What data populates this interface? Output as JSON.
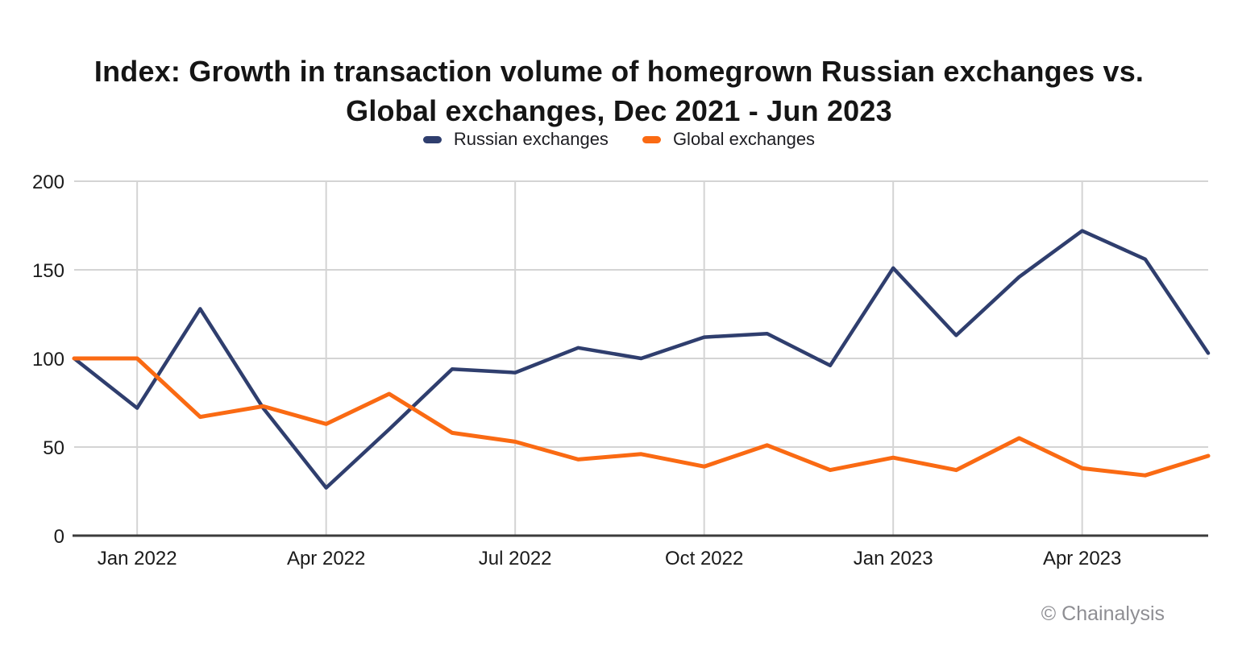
{
  "title": {
    "line1": "Index: Growth in transaction volume of homegrown Russian exchanges vs.",
    "line2": "Global exchanges, Dec 2021 - Jun 2023"
  },
  "legend": {
    "items": [
      {
        "label": "Russian exchanges",
        "color": "#2f3e6e"
      },
      {
        "label": "Global exchanges",
        "color": "#fa6a13"
      }
    ]
  },
  "footer": {
    "copyright": "© Chainalysis"
  },
  "chart_data": {
    "type": "line",
    "title": "Index: Growth in transaction volume of homegrown Russian exchanges vs. Global exchanges, Dec 2021 - Jun 2023",
    "x": [
      "Dec 2021",
      "Jan 2022",
      "Feb 2022",
      "Mar 2022",
      "Apr 2022",
      "May 2022",
      "Jun 2022",
      "Jul 2022",
      "Aug 2022",
      "Sep 2022",
      "Oct 2022",
      "Nov 2022",
      "Dec 2022",
      "Jan 2023",
      "Feb 2023",
      "Mar 2023",
      "Apr 2023",
      "May 2023",
      "Jun 2023"
    ],
    "series": [
      {
        "name": "Russian exchanges",
        "color": "#2f3e6e",
        "values": [
          100,
          72,
          128,
          72,
          27,
          60,
          94,
          92,
          106,
          100,
          112,
          114,
          96,
          151,
          113,
          146,
          172,
          156,
          103
        ]
      },
      {
        "name": "Global exchanges",
        "color": "#fa6a13",
        "values": [
          100,
          100,
          67,
          73,
          63,
          80,
          58,
          53,
          43,
          46,
          39,
          51,
          37,
          44,
          37,
          55,
          38,
          34,
          45
        ]
      }
    ],
    "ylim": [
      0,
      200
    ],
    "yticks": [
      0,
      50,
      100,
      150,
      200
    ],
    "xticks": [
      "Jan 2022",
      "Apr 2022",
      "Jul 2022",
      "Oct 2022",
      "Jan 2023",
      "Apr 2023"
    ],
    "xlabel": "",
    "ylabel": "",
    "grid": true,
    "legend_position": "top"
  }
}
